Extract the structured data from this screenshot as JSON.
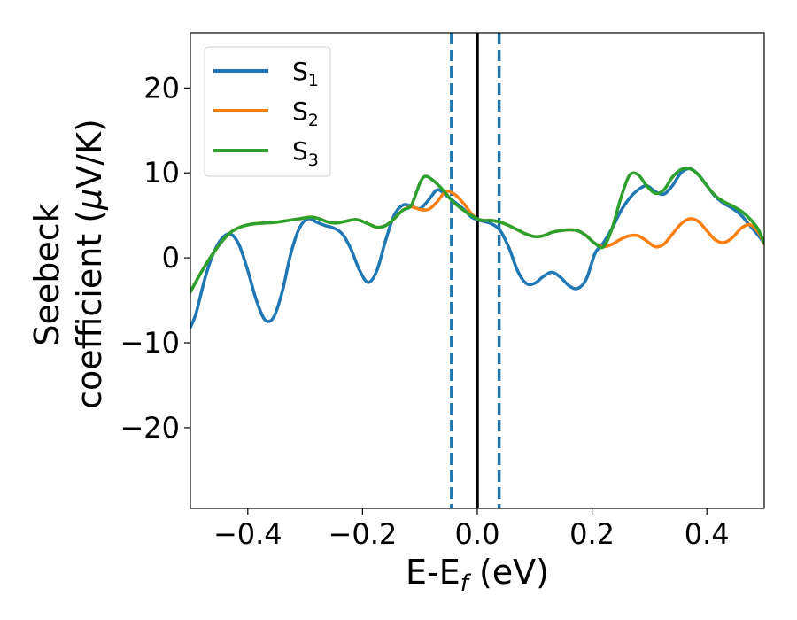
{
  "chart_data": {
    "type": "line",
    "title": "",
    "xlabel": {
      "main": "E-E",
      "sub": "f",
      "suffix": " (eV)"
    },
    "ylabel": {
      "line1": "Seebeck",
      "line2_pre": "coefficient  (",
      "mu": "μ",
      "line2_post": "V/K)"
    },
    "xlim": [
      -0.5,
      0.5
    ],
    "ylim": [
      -29.5,
      26.5
    ],
    "xticks": [
      -0.4,
      -0.2,
      0.0,
      0.2,
      0.4
    ],
    "xtick_labels": [
      "−0.4",
      "−0.2",
      "0.0",
      "0.2",
      "0.4"
    ],
    "yticks": [
      20,
      10,
      0,
      -10,
      -20
    ],
    "ytick_labels": [
      "20",
      "10",
      "0",
      "−10",
      "−20"
    ],
    "grid": false,
    "legend_position": "top-left",
    "vlines": [
      {
        "x": -0.045,
        "style": "dashed",
        "color": "#1f77b4"
      },
      {
        "x": 0.038,
        "style": "dashed",
        "color": "#1f77b4"
      },
      {
        "x": 0.0,
        "style": "solid",
        "color": "#000000"
      }
    ],
    "series": [
      {
        "name": "S",
        "sub": "1",
        "color": "#1f77b4",
        "x": [
          -0.5,
          -0.49,
          -0.475,
          -0.46,
          -0.445,
          -0.43,
          -0.415,
          -0.4,
          -0.385,
          -0.37,
          -0.355,
          -0.34,
          -0.325,
          -0.31,
          -0.295,
          -0.28,
          -0.265,
          -0.25,
          -0.235,
          -0.22,
          -0.205,
          -0.19,
          -0.175,
          -0.16,
          -0.145,
          -0.13,
          -0.115,
          -0.1,
          -0.085,
          -0.07,
          -0.055,
          -0.04,
          -0.025,
          -0.01,
          0.0,
          0.01,
          0.025,
          0.04,
          0.055,
          0.07,
          0.085,
          0.1,
          0.115,
          0.13,
          0.145,
          0.16,
          0.175,
          0.19,
          0.205,
          0.22,
          0.235,
          0.25,
          0.265,
          0.28,
          0.295,
          0.31,
          0.325,
          0.34,
          0.355,
          0.37,
          0.385,
          0.4,
          0.415,
          0.43,
          0.445,
          0.46,
          0.475,
          0.49,
          0.5
        ],
        "values": [
          -8.2,
          -6.5,
          -2.5,
          0.5,
          2.3,
          2.8,
          1.5,
          -1.5,
          -5.0,
          -7.3,
          -7.0,
          -4.0,
          0.5,
          3.5,
          4.6,
          4.2,
          3.8,
          3.5,
          2.8,
          1.0,
          -1.5,
          -2.9,
          -1.5,
          2.0,
          5.0,
          6.2,
          6.1,
          5.8,
          6.8,
          8.0,
          7.4,
          6.6,
          5.8,
          4.8,
          4.5,
          4.3,
          4.0,
          3.2,
          1.2,
          -1.5,
          -3.0,
          -3.0,
          -2.2,
          -1.7,
          -2.3,
          -3.3,
          -3.6,
          -2.5,
          0.5,
          1.8,
          3.5,
          5.5,
          7.0,
          8.0,
          8.5,
          7.8,
          7.5,
          8.5,
          10.0,
          10.5,
          9.8,
          8.5,
          7.2,
          6.4,
          5.8,
          5.0,
          3.8,
          2.6,
          1.7
        ]
      },
      {
        "name": "S",
        "sub": "2",
        "color": "#ff7f0e",
        "x": [
          -0.5,
          -0.475,
          -0.45,
          -0.43,
          -0.41,
          -0.39,
          -0.37,
          -0.35,
          -0.33,
          -0.31,
          -0.29,
          -0.275,
          -0.26,
          -0.245,
          -0.23,
          -0.21,
          -0.19,
          -0.175,
          -0.16,
          -0.145,
          -0.13,
          -0.115,
          -0.1,
          -0.085,
          -0.07,
          -0.055,
          -0.04,
          -0.025,
          -0.01,
          0.0,
          0.01,
          0.025,
          0.04,
          0.055,
          0.07,
          0.085,
          0.1,
          0.115,
          0.13,
          0.145,
          0.16,
          0.175,
          0.19,
          0.205,
          0.22,
          0.235,
          0.25,
          0.265,
          0.28,
          0.295,
          0.31,
          0.325,
          0.34,
          0.355,
          0.37,
          0.385,
          0.4,
          0.415,
          0.43,
          0.445,
          0.46,
          0.475,
          0.49,
          0.5
        ],
        "values": [
          -4.0,
          -1.0,
          1.5,
          3.0,
          3.7,
          4.0,
          4.1,
          4.2,
          4.4,
          4.6,
          4.8,
          4.6,
          4.2,
          4.1,
          4.3,
          4.5,
          4.0,
          3.6,
          3.8,
          4.6,
          5.6,
          6.0,
          5.7,
          5.7,
          6.6,
          7.8,
          7.5,
          6.5,
          5.2,
          4.6,
          4.4,
          4.4,
          4.2,
          3.8,
          3.3,
          2.8,
          2.5,
          2.6,
          3.0,
          3.2,
          3.3,
          3.2,
          2.6,
          1.7,
          1.3,
          1.6,
          2.2,
          2.6,
          2.6,
          2.0,
          1.3,
          1.6,
          2.8,
          4.0,
          4.6,
          4.3,
          3.2,
          2.1,
          1.8,
          2.4,
          3.5,
          3.9,
          3.0,
          1.6
        ]
      },
      {
        "name": "S",
        "sub": "3",
        "color": "#2ca02c",
        "x": [
          -0.5,
          -0.475,
          -0.45,
          -0.43,
          -0.41,
          -0.39,
          -0.37,
          -0.35,
          -0.33,
          -0.31,
          -0.29,
          -0.275,
          -0.26,
          -0.245,
          -0.23,
          -0.21,
          -0.19,
          -0.175,
          -0.16,
          -0.145,
          -0.13,
          -0.115,
          -0.1,
          -0.09,
          -0.075,
          -0.06,
          -0.045,
          -0.03,
          -0.015,
          0.0,
          0.01,
          0.025,
          0.04,
          0.055,
          0.07,
          0.085,
          0.1,
          0.115,
          0.13,
          0.145,
          0.16,
          0.175,
          0.19,
          0.205,
          0.22,
          0.235,
          0.25,
          0.265,
          0.28,
          0.295,
          0.31,
          0.325,
          0.34,
          0.355,
          0.37,
          0.385,
          0.4,
          0.415,
          0.43,
          0.445,
          0.46,
          0.475,
          0.49,
          0.5
        ],
        "values": [
          -4.0,
          -1.0,
          1.5,
          3.0,
          3.7,
          4.0,
          4.1,
          4.2,
          4.4,
          4.6,
          4.8,
          4.6,
          4.2,
          4.1,
          4.3,
          4.5,
          4.0,
          3.6,
          3.8,
          4.6,
          5.6,
          6.2,
          8.8,
          9.6,
          9.0,
          8.0,
          6.8,
          5.9,
          5.2,
          4.6,
          4.4,
          4.4,
          4.2,
          3.8,
          3.3,
          2.8,
          2.5,
          2.6,
          3.0,
          3.2,
          3.3,
          3.2,
          2.6,
          1.7,
          1.3,
          3.5,
          7.0,
          9.7,
          9.8,
          8.5,
          7.6,
          8.0,
          9.5,
          10.4,
          10.5,
          9.8,
          8.5,
          7.3,
          6.6,
          6.1,
          5.5,
          4.6,
          3.3,
          1.7
        ]
      }
    ]
  }
}
